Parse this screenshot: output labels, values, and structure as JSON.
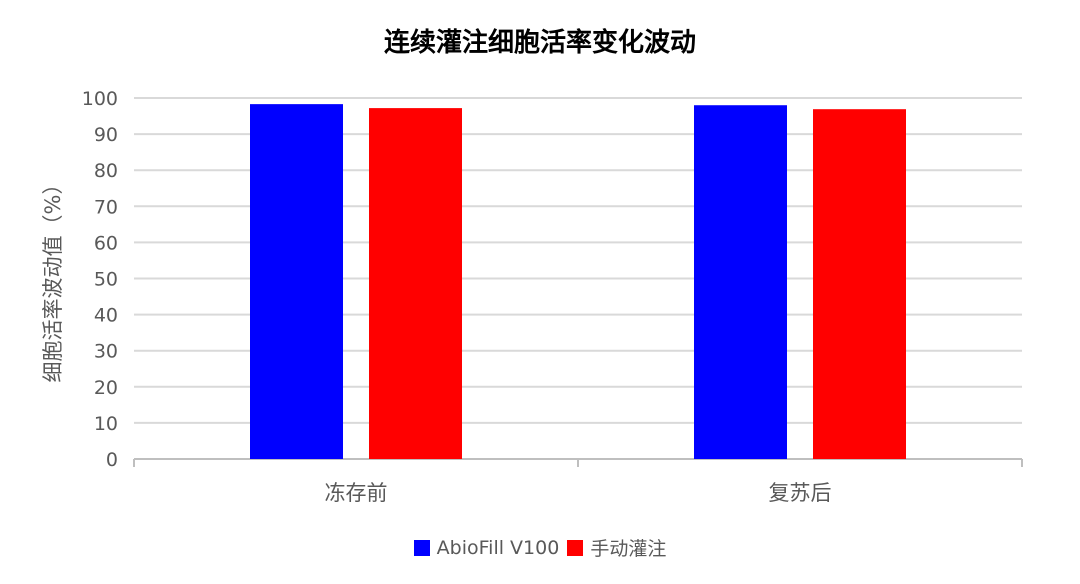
{
  "chart_data": {
    "type": "bar",
    "title": "连续灌注细胞活率变化波动",
    "xlabel": "",
    "ylabel": "细胞活率波动值（%）",
    "categories": [
      "冻存前",
      "复苏后"
    ],
    "series": [
      {
        "name": "AbioFill V100",
        "color": "#0000FF",
        "values": [
          98.3,
          98.0
        ]
      },
      {
        "name": "手动灌注",
        "color": "#FF0000",
        "values": [
          97.2,
          96.9
        ]
      }
    ],
    "ylim": [
      0,
      100
    ],
    "yticks": [
      0,
      10,
      20,
      30,
      40,
      50,
      60,
      70,
      80,
      90,
      100
    ],
    "grid": true,
    "legend_position": "bottom"
  }
}
